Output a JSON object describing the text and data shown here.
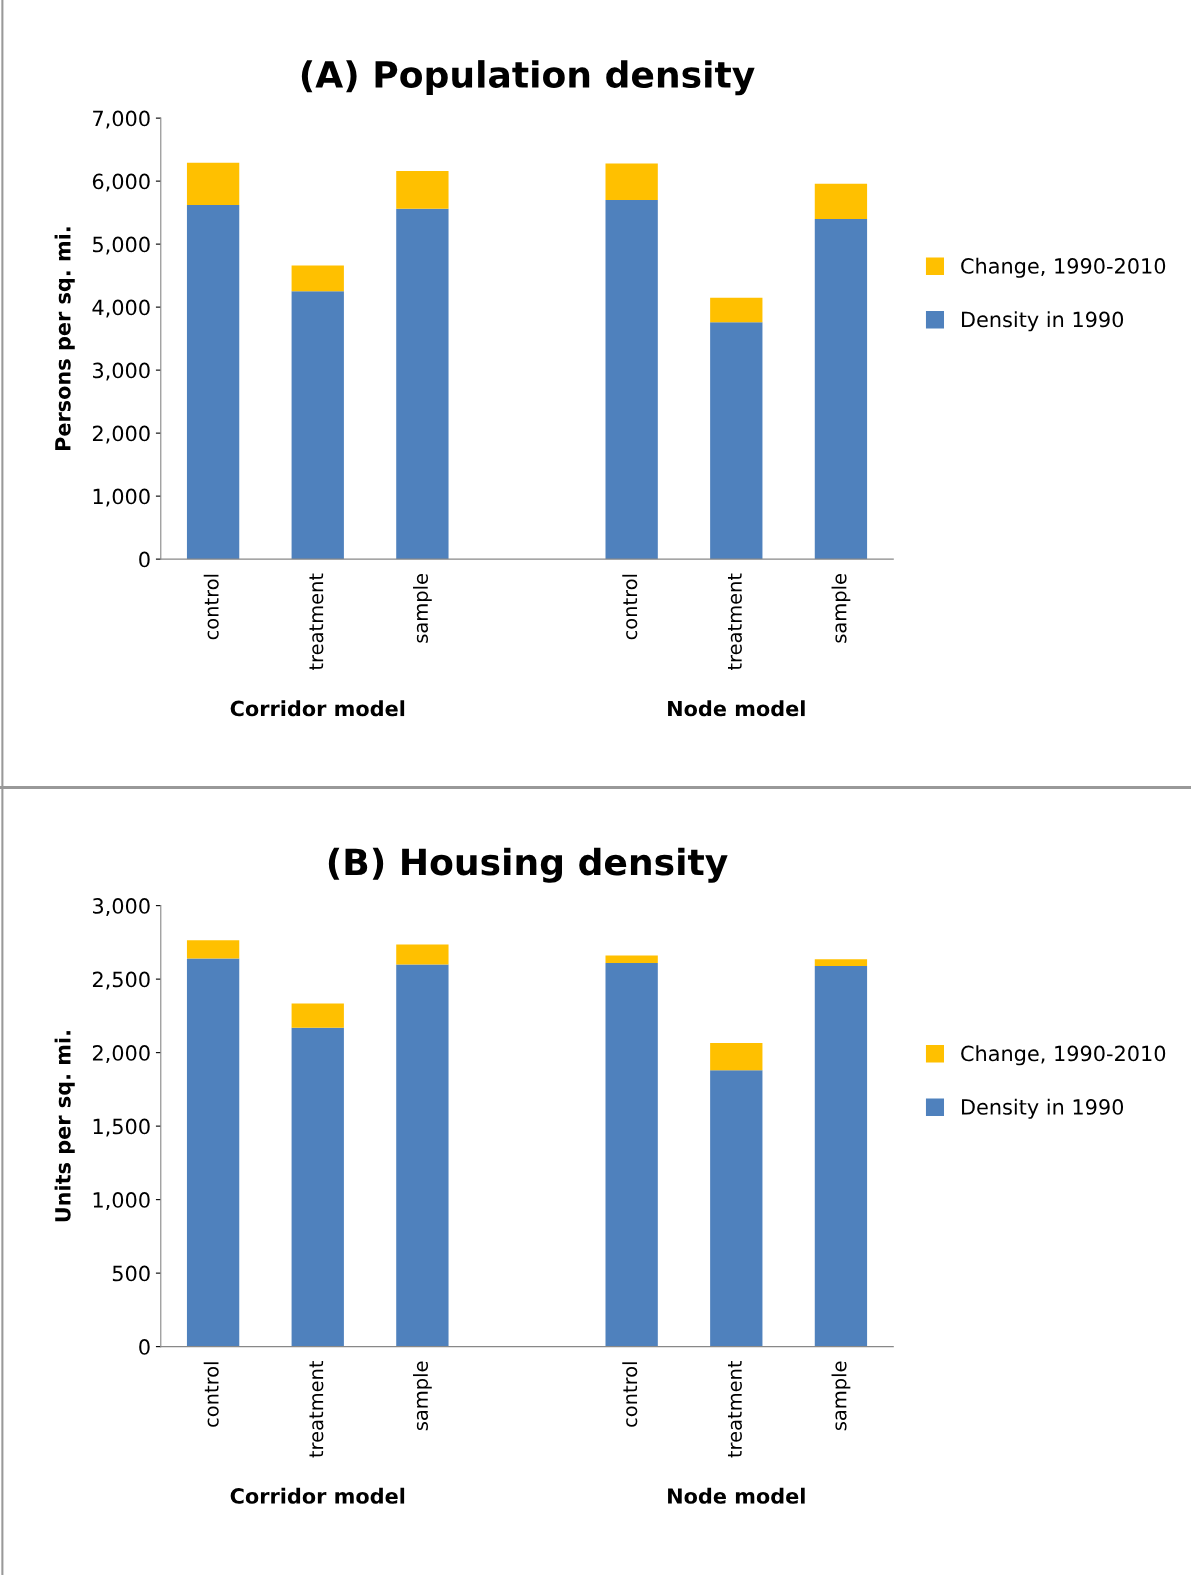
{
  "chart_data": [
    {
      "type": "bar",
      "title": "(A) Population density",
      "ylabel": "Persons per sq. mi.",
      "stacked": true,
      "legend": "right",
      "grid": false,
      "categories": [
        "control",
        "treatment",
        "sample",
        null,
        "control",
        "treatment",
        "sample"
      ],
      "series": [
        {
          "name": "Density in 1990",
          "color": "#4f81bd",
          "values": [
            5620,
            4250,
            5560,
            null,
            5700,
            3760,
            5400
          ]
        },
        {
          "name": "Change, 1990-2010",
          "color": "#ffc000",
          "values": [
            670,
            410,
            600,
            null,
            580,
            390,
            560
          ]
        }
      ],
      "ylim": [
        0,
        7000
      ],
      "yticks": [
        {
          "value": 0,
          "label": "0"
        },
        {
          "value": 1000,
          "label": "1,000"
        },
        {
          "value": 2000,
          "label": "2,000"
        },
        {
          "value": 3000,
          "label": "3,000"
        },
        {
          "value": 4000,
          "label": "4,000"
        },
        {
          "value": 5000,
          "label": "5,000"
        },
        {
          "value": 6000,
          "label": "6,000"
        },
        {
          "value": 7000,
          "label": "7,000"
        }
      ],
      "annotations": [
        "Corridor model",
        "Node model"
      ]
    },
    {
      "type": "bar",
      "title": "(B) Housing density",
      "ylabel": "Units per sq. mi.",
      "stacked": true,
      "legend": "right",
      "grid": false,
      "categories": [
        "control",
        "treatment",
        "sample",
        null,
        "control",
        "treatment",
        "sample"
      ],
      "series": [
        {
          "name": "Density in 1990",
          "color": "#4f81bd",
          "values": [
            2640,
            2170,
            2600,
            null,
            2610,
            1880,
            2590
          ]
        },
        {
          "name": "Change, 1990-2010",
          "color": "#ffc000",
          "values": [
            125,
            165,
            135,
            null,
            50,
            185,
            45
          ]
        }
      ],
      "ylim": [
        0,
        3000
      ],
      "yticks": [
        {
          "value": 0,
          "label": "0"
        },
        {
          "value": 500,
          "label": "500"
        },
        {
          "value": 1000,
          "label": "1,000"
        },
        {
          "value": 1500,
          "label": "1,500"
        },
        {
          "value": 2000,
          "label": "2,000"
        },
        {
          "value": 2500,
          "label": "2,500"
        },
        {
          "value": 3000,
          "label": "3,000"
        }
      ],
      "annotations": [
        "Corridor model",
        "Node model"
      ]
    }
  ]
}
